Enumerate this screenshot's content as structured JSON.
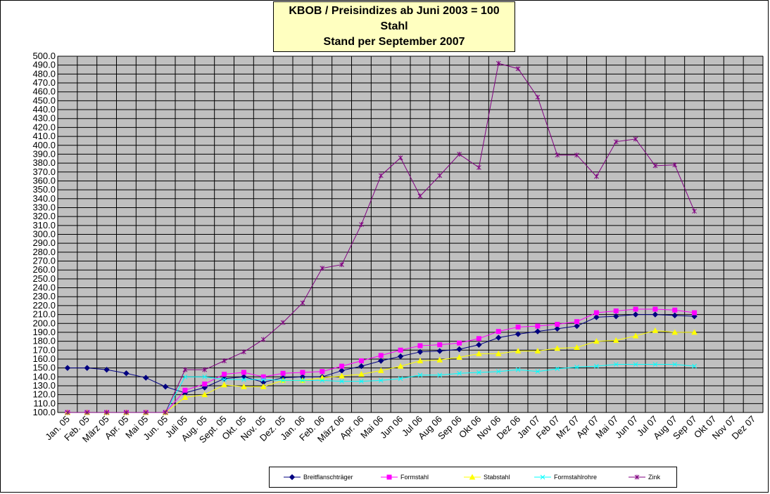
{
  "title": {
    "line1": "KBOB / Preisindizes ab Juni 2003 = 100",
    "line2": "Stahl",
    "line3": "Stand per September 2007"
  },
  "chart_data": {
    "type": "line",
    "title": "KBOB / Preisindizes ab Juni 2003 = 100 Stahl Stand per September 2007",
    "ylim": [
      100,
      500
    ],
    "ystep": 10,
    "grid": true,
    "plot_background": "#c0c0c0",
    "legend_position": "bottom",
    "categories": [
      "Jan. 05",
      "Feb. 05",
      "März 05",
      "Apr. 05",
      "Mai 05",
      "Jun. 05",
      "Juli 05",
      "Aug. 05",
      "Sept. 05",
      "Okt. 05",
      "Nov. 05",
      "Dez. 05",
      "Jan. 06",
      "Feb. 06",
      "März 06",
      "Apr. 06",
      "Mai 06",
      "Jun 06",
      "Jul 06",
      "Aug 06",
      "Sep 06",
      "Okt 06",
      "Nov 06",
      "Dez 06",
      "Jan 07",
      "Feb 07",
      "Mrz 07",
      "Apr 07",
      "Mai 07",
      "Jun 07",
      "Jul 07",
      "Aug 07",
      "Sep 07",
      "Okt 07",
      "Nov 07",
      "Dez 07"
    ],
    "series": [
      {
        "name": "Breitflanschträger",
        "color": "#000080",
        "marker": "diamond",
        "values": [
          150,
          150,
          148,
          144,
          139,
          129,
          122,
          128,
          138,
          140,
          134,
          139,
          140,
          140,
          147,
          152,
          158,
          163,
          168,
          169,
          171,
          176,
          184,
          188,
          191,
          194,
          197,
          207,
          208,
          210,
          210,
          209,
          208,
          null,
          null,
          null
        ]
      },
      {
        "name": "Formstahl",
        "color": "#ff00ff",
        "marker": "square",
        "values": [
          100,
          100,
          100,
          100,
          100,
          100,
          125,
          132,
          143,
          145,
          140,
          144,
          145,
          146,
          152,
          158,
          164,
          170,
          175,
          176,
          178,
          183,
          191,
          196,
          197,
          199,
          202,
          212,
          214,
          216,
          216,
          215,
          212,
          null,
          null,
          null
        ]
      },
      {
        "name": "Stabstahl",
        "color": "#ffff00",
        "marker": "triangle",
        "values": [
          100,
          100,
          100,
          100,
          100,
          100,
          117,
          120,
          131,
          129,
          129,
          136,
          136,
          139,
          141,
          143,
          147,
          152,
          158,
          159,
          162,
          166,
          166,
          169,
          169,
          172,
          173,
          180,
          181,
          186,
          192,
          190,
          190,
          null,
          null,
          null
        ]
      },
      {
        "name": "Formstahlrohre",
        "color": "#00ffff",
        "marker": "x",
        "values": [
          100,
          100,
          100,
          100,
          100,
          100,
          140,
          140,
          137,
          137,
          137,
          136,
          136,
          136,
          135,
          135,
          136,
          138,
          142,
          142,
          144,
          145,
          146,
          148,
          146,
          149,
          151,
          152,
          154,
          154,
          154,
          154,
          152,
          null,
          null,
          null
        ]
      },
      {
        "name": "Zink",
        "color": "#800080",
        "marker": "star",
        "values": [
          100,
          100,
          100,
          100,
          100,
          100,
          148,
          148,
          158,
          168,
          182,
          201,
          223,
          262,
          266,
          311,
          366,
          386,
          343,
          366,
          390,
          375,
          492,
          486,
          454,
          389,
          389,
          365,
          404,
          407,
          377,
          378,
          326,
          null,
          null,
          null
        ]
      }
    ]
  }
}
